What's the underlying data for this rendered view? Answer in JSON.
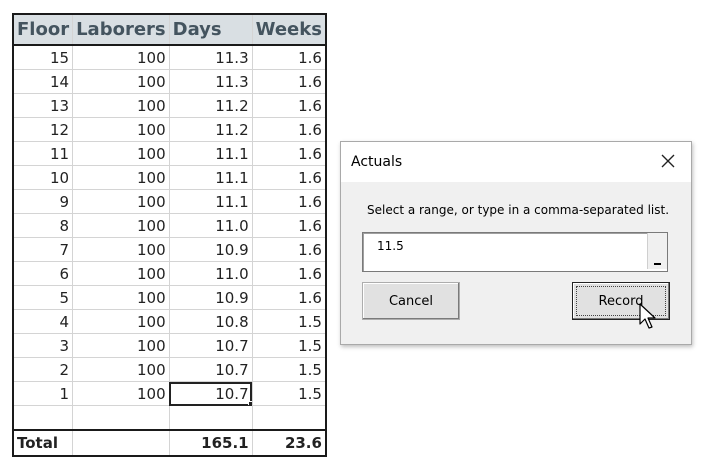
{
  "sheet": {
    "headers": [
      "Floor",
      "Laborers",
      "Days",
      "Weeks"
    ],
    "rows": [
      [
        "15",
        "100",
        "11.3",
        "1.6"
      ],
      [
        "14",
        "100",
        "11.3",
        "1.6"
      ],
      [
        "13",
        "100",
        "11.2",
        "1.6"
      ],
      [
        "12",
        "100",
        "11.2",
        "1.6"
      ],
      [
        "11",
        "100",
        "11.1",
        "1.6"
      ],
      [
        "10",
        "100",
        "11.1",
        "1.6"
      ],
      [
        "9",
        "100",
        "11.1",
        "1.6"
      ],
      [
        "8",
        "100",
        "11.0",
        "1.6"
      ],
      [
        "7",
        "100",
        "10.9",
        "1.6"
      ],
      [
        "6",
        "100",
        "11.0",
        "1.6"
      ],
      [
        "5",
        "100",
        "10.9",
        "1.6"
      ],
      [
        "4",
        "100",
        "10.8",
        "1.5"
      ],
      [
        "3",
        "100",
        "10.7",
        "1.5"
      ],
      [
        "2",
        "100",
        "10.7",
        "1.5"
      ],
      [
        "1",
        "100",
        "10.7",
        "1.5"
      ],
      [
        "",
        "",
        "",
        ""
      ]
    ],
    "total": [
      "Total",
      "",
      "165.1",
      "23.6"
    ]
  },
  "dialog": {
    "title": "Actuals",
    "prompt": "Select a range, or type in a comma-separated list.",
    "input_value": "11.5",
    "cancel_label": "Cancel",
    "record_label": "Record"
  },
  "icons": {
    "close": "close-icon",
    "range_picker": "collapse-dialog-icon",
    "cursor": "mouse-pointer-icon"
  }
}
